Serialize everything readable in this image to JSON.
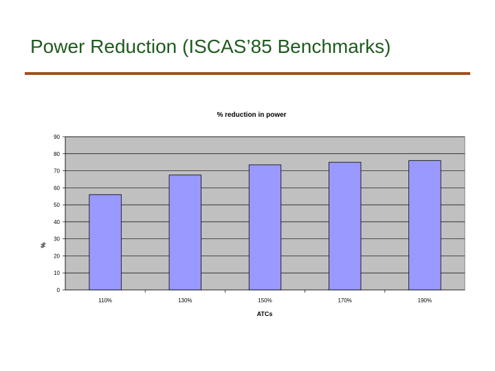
{
  "slide": {
    "title": "Power Reduction (ISCAS’85 Benchmarks)",
    "title_color": "#1f5a1f",
    "rule_color": "#a0501a"
  },
  "chart_data": {
    "type": "bar",
    "title": "% reduction in power",
    "xlabel": "ATCs",
    "ylabel": "%",
    "categories": [
      "110%",
      "130%",
      "150%",
      "170%",
      "190%"
    ],
    "values": [
      56,
      67.5,
      73.5,
      75,
      76
    ],
    "ylim": [
      0,
      90
    ],
    "yticks": [
      0,
      10,
      20,
      30,
      40,
      50,
      60,
      70,
      80,
      90
    ],
    "grid": true,
    "legend": "none",
    "plot_background": "#c0c0c0",
    "bar_color": "#9999ff"
  }
}
